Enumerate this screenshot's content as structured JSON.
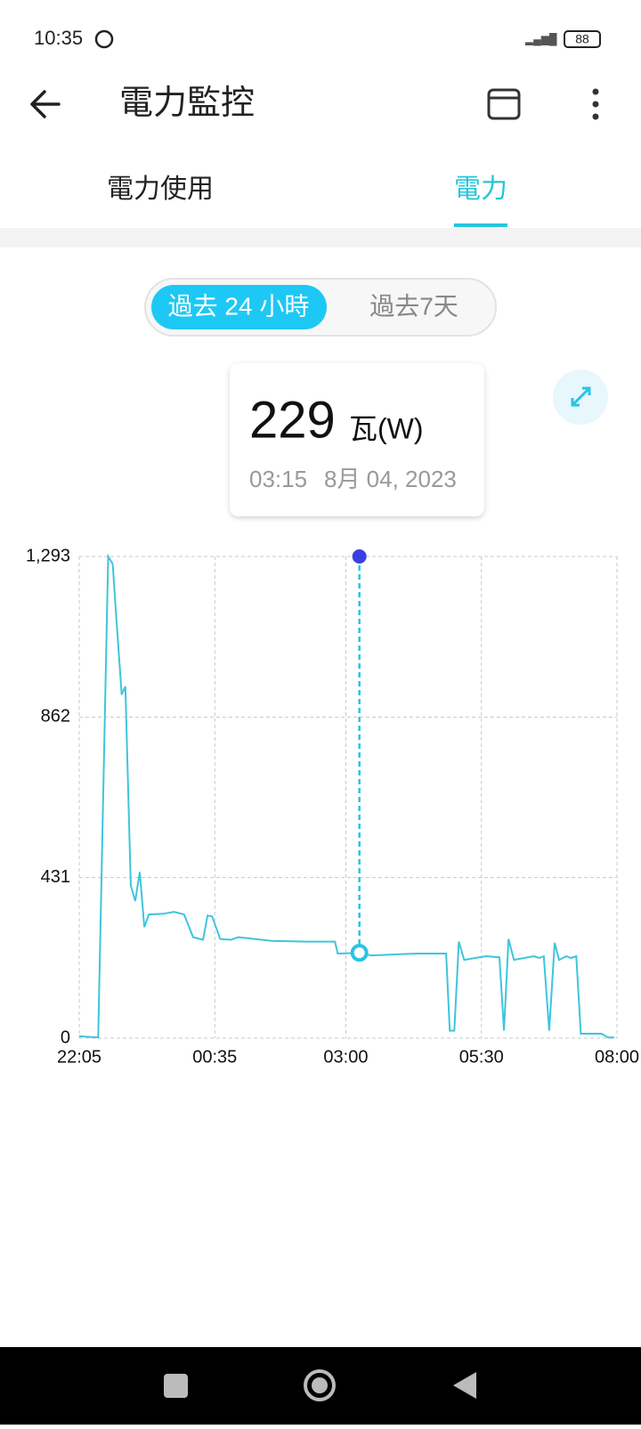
{
  "status_bar": {
    "time": "10:35",
    "battery": "88"
  },
  "header": {
    "title": "電力監控"
  },
  "tabs": [
    "電力使用",
    "電力"
  ],
  "range_toggle": [
    "過去 24 小時",
    "過去7天"
  ],
  "tooltip": {
    "value": 229,
    "unit": "瓦(W)",
    "time": "03:15",
    "date": "8月 04, 2023"
  },
  "chart_data": {
    "type": "line",
    "color": "#3ec5db",
    "x": [
      "22:05",
      "22:26",
      "22:37",
      "22:42",
      "22:46",
      "22:52",
      "22:56",
      "23:02",
      "23:07",
      "23:12",
      "23:17",
      "23:22",
      "23:38",
      "23:50",
      "00:01",
      "00:11",
      "00:22",
      "00:27",
      "00:32",
      "00:41",
      "00:53",
      "01:01",
      "01:38",
      "02:18",
      "02:48",
      "02:51",
      "03:15",
      "03:28",
      "04:18",
      "04:51",
      "04:55",
      "05:00",
      "05:05",
      "05:11",
      "05:23",
      "05:35",
      "05:50",
      "05:55",
      "06:00",
      "06:06",
      "06:28",
      "06:34",
      "06:39",
      "06:45",
      "06:51",
      "06:56",
      "07:04",
      "07:09",
      "07:15",
      "07:20",
      "07:43",
      "07:50",
      "07:57"
    ],
    "values": [
      5,
      2,
      1293,
      1273,
      1130,
      922,
      944,
      410,
      368,
      446,
      298,
      332,
      334,
      339,
      332,
      271,
      264,
      329,
      327,
      266,
      264,
      271,
      261,
      259,
      259,
      227,
      229,
      222,
      227,
      227,
      20,
      20,
      259,
      210,
      215,
      220,
      217,
      20,
      266,
      210,
      220,
      215,
      220,
      20,
      256,
      210,
      220,
      215,
      220,
      12,
      12,
      2,
      2
    ],
    "xlim": [
      "22:05",
      "08:00"
    ],
    "xticks": [
      "22:05",
      "00:35",
      "03:00",
      "05:30",
      "08:00"
    ],
    "ylim": [
      0,
      1293
    ],
    "yticks": [
      0,
      431,
      862,
      {
        "value": 1293,
        "label": "1,293"
      }
    ],
    "grid": true
  }
}
